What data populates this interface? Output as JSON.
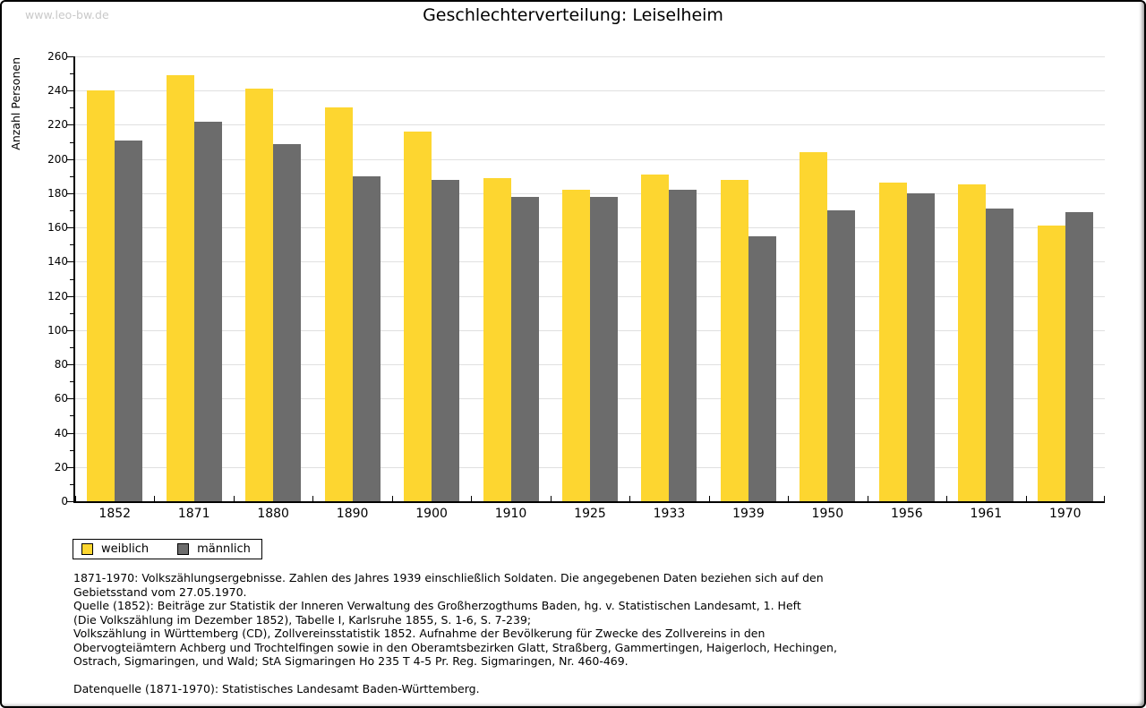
{
  "window": {
    "watermark": "www.leo-bw.de"
  },
  "chart_data": {
    "type": "bar",
    "title": "Geschlechterverteilung: Leiselheim",
    "xlabel": "",
    "ylabel": "Anzahl Personen",
    "categories": [
      "1852",
      "1871",
      "1880",
      "1890",
      "1900",
      "1910",
      "1925",
      "1933",
      "1939",
      "1950",
      "1956",
      "1961",
      "1970"
    ],
    "series": [
      {
        "name": "weiblich",
        "color": "#fdd630",
        "values": [
          240,
          249,
          241,
          230,
          216,
          189,
          182,
          191,
          188,
          204,
          186,
          185,
          161
        ]
      },
      {
        "name": "männlich",
        "color": "#6c6c6c",
        "values": [
          211,
          222,
          209,
          190,
          188,
          178,
          178,
          182,
          155,
          170,
          180,
          171,
          169
        ]
      }
    ],
    "ylim": [
      0,
      260
    ],
    "ytick_step": 20,
    "minor_tick_step": 10,
    "grid": true,
    "grid_color": "#e0e0e0",
    "legend_position": "bottom-left"
  },
  "footer": {
    "lines": [
      "1871-1970: Volkszählungsergebnisse. Zahlen des Jahres 1939 einschließlich Soldaten. Die angegebenen Daten beziehen sich auf den",
      "Gebietsstand vom 27.05.1970.",
      "Quelle (1852): Beiträge zur Statistik der Inneren Verwaltung des Großherzogthums Baden, hg. v. Statistischen Landesamt, 1. Heft",
      "(Die Volkszählung im Dezember 1852), Tabelle I, Karlsruhe 1855, S. 1-6, S. 7-239;",
      "Volkszählung in Württemberg (CD), Zollvereinsstatistik 1852. Aufnahme der Bevölkerung für Zwecke des Zollvereins in den",
      "Obervogteiämtern Achberg und Trochtelfingen sowie in den Oberamtsbezirken Glatt, Straßberg, Gammertingen, Haigerloch, Hechingen,",
      "Ostrach, Sigmaringen, und Wald; StA Sigmaringen Ho 235 T 4-5 Pr. Reg. Sigmaringen, Nr. 460-469."
    ],
    "datasource": "Datenquelle (1871-1970): Statistisches Landesamt Baden-Württemberg."
  }
}
